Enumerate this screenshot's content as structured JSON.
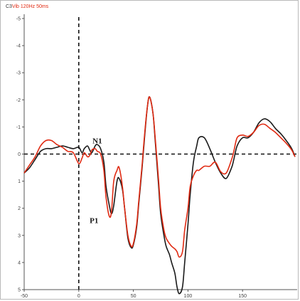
{
  "chart_data": {
    "type": "line",
    "title": "C3",
    "subtitle": "Vib 120Hz 50ms",
    "xlim": [
      -50,
      200
    ],
    "ylim": [
      5,
      -5
    ],
    "y_inverted": true,
    "x_ticks": [
      "-50",
      "0",
      "50",
      "100",
      "150"
    ],
    "x_tick_values": [
      -50,
      0,
      50,
      100,
      150
    ],
    "y_ticks": [
      "-5",
      "-4",
      "-3",
      "-2",
      "-1",
      "0",
      "1",
      "2",
      "3",
      "4",
      "5"
    ],
    "y_tick_values": [
      -5,
      -4,
      -3,
      -2,
      -1,
      0,
      1,
      2,
      3,
      4,
      5
    ],
    "annotations": [
      {
        "label": "N1",
        "x": 17,
        "y": -0.4
      },
      {
        "label": "P1",
        "x": 14,
        "y": 2.55
      }
    ],
    "series": [
      {
        "color": "#1a1a1a",
        "x": [
          -50,
          -45,
          -40,
          -35,
          -30,
          -25,
          -20,
          -15,
          -10,
          -5,
          0,
          3,
          5,
          8,
          10,
          12,
          15,
          17,
          20,
          23,
          25,
          28,
          30,
          32,
          35,
          37,
          40,
          42,
          45,
          48,
          50,
          53,
          55,
          58,
          60,
          63,
          65,
          68,
          70,
          73,
          75,
          78,
          80,
          83,
          85,
          88,
          90,
          92,
          95,
          97,
          100,
          102,
          105,
          108,
          110,
          115,
          120,
          125,
          130,
          135,
          140,
          142,
          145,
          150,
          155,
          160,
          165,
          170,
          175,
          180,
          185,
          190,
          195,
          198
        ],
        "y": [
          0.7,
          0.5,
          0.2,
          -0.1,
          -0.2,
          -0.2,
          -0.25,
          -0.3,
          -0.25,
          -0.2,
          -0.25,
          -0.05,
          -0.2,
          -0.3,
          -0.15,
          -0.05,
          -0.3,
          -0.35,
          -0.2,
          0.3,
          1.2,
          1.9,
          2.2,
          1.9,
          1.0,
          0.9,
          1.3,
          2.0,
          3.1,
          3.45,
          3.35,
          2.7,
          1.8,
          0.5,
          -0.5,
          -1.8,
          -2.1,
          -1.5,
          -0.5,
          1.1,
          2.2,
          3.0,
          3.4,
          3.7,
          4.0,
          4.4,
          4.9,
          5.15,
          4.9,
          4.0,
          2.6,
          1.5,
          0.3,
          -0.3,
          -0.6,
          -0.6,
          -0.2,
          0.3,
          0.7,
          0.9,
          0.5,
          0.2,
          -0.3,
          -0.6,
          -0.6,
          -0.8,
          -1.15,
          -1.3,
          -1.2,
          -0.95,
          -0.75,
          -0.5,
          -0.2,
          0.1
        ]
      },
      {
        "color": "#e02a12",
        "x": [
          -50,
          -45,
          -40,
          -35,
          -30,
          -25,
          -20,
          -15,
          -10,
          -5,
          0,
          3,
          5,
          8,
          10,
          12,
          15,
          17,
          20,
          23,
          25,
          28,
          30,
          32,
          35,
          37,
          40,
          42,
          45,
          48,
          50,
          53,
          55,
          58,
          60,
          63,
          65,
          68,
          70,
          73,
          75,
          78,
          80,
          83,
          85,
          88,
          90,
          92,
          95,
          97,
          100,
          102,
          105,
          108,
          110,
          115,
          120,
          125,
          130,
          135,
          140,
          142,
          145,
          150,
          155,
          160,
          165,
          170,
          175,
          180,
          185,
          190,
          195,
          198
        ],
        "y": [
          0.7,
          0.4,
          0.1,
          -0.3,
          -0.5,
          -0.5,
          -0.35,
          -0.25,
          -0.1,
          -0.05,
          0.35,
          0.15,
          -0.05,
          0.1,
          0.05,
          -0.15,
          -0.2,
          -0.1,
          0.0,
          0.6,
          1.6,
          2.3,
          2.1,
          1.0,
          0.6,
          0.5,
          1.2,
          2.0,
          3.0,
          3.4,
          3.3,
          2.6,
          1.7,
          0.4,
          -0.6,
          -1.8,
          -2.1,
          -1.5,
          -0.6,
          0.9,
          2.0,
          2.8,
          3.1,
          3.3,
          3.4,
          3.5,
          3.6,
          3.8,
          3.6,
          2.8,
          2.0,
          1.2,
          0.8,
          0.6,
          0.6,
          0.45,
          0.45,
          0.3,
          0.65,
          0.7,
          0.2,
          -0.1,
          -0.6,
          -0.7,
          -0.65,
          -0.8,
          -1.05,
          -1.1,
          -0.95,
          -0.8,
          -0.6,
          -0.4,
          -0.15,
          0.1
        ]
      }
    ]
  }
}
